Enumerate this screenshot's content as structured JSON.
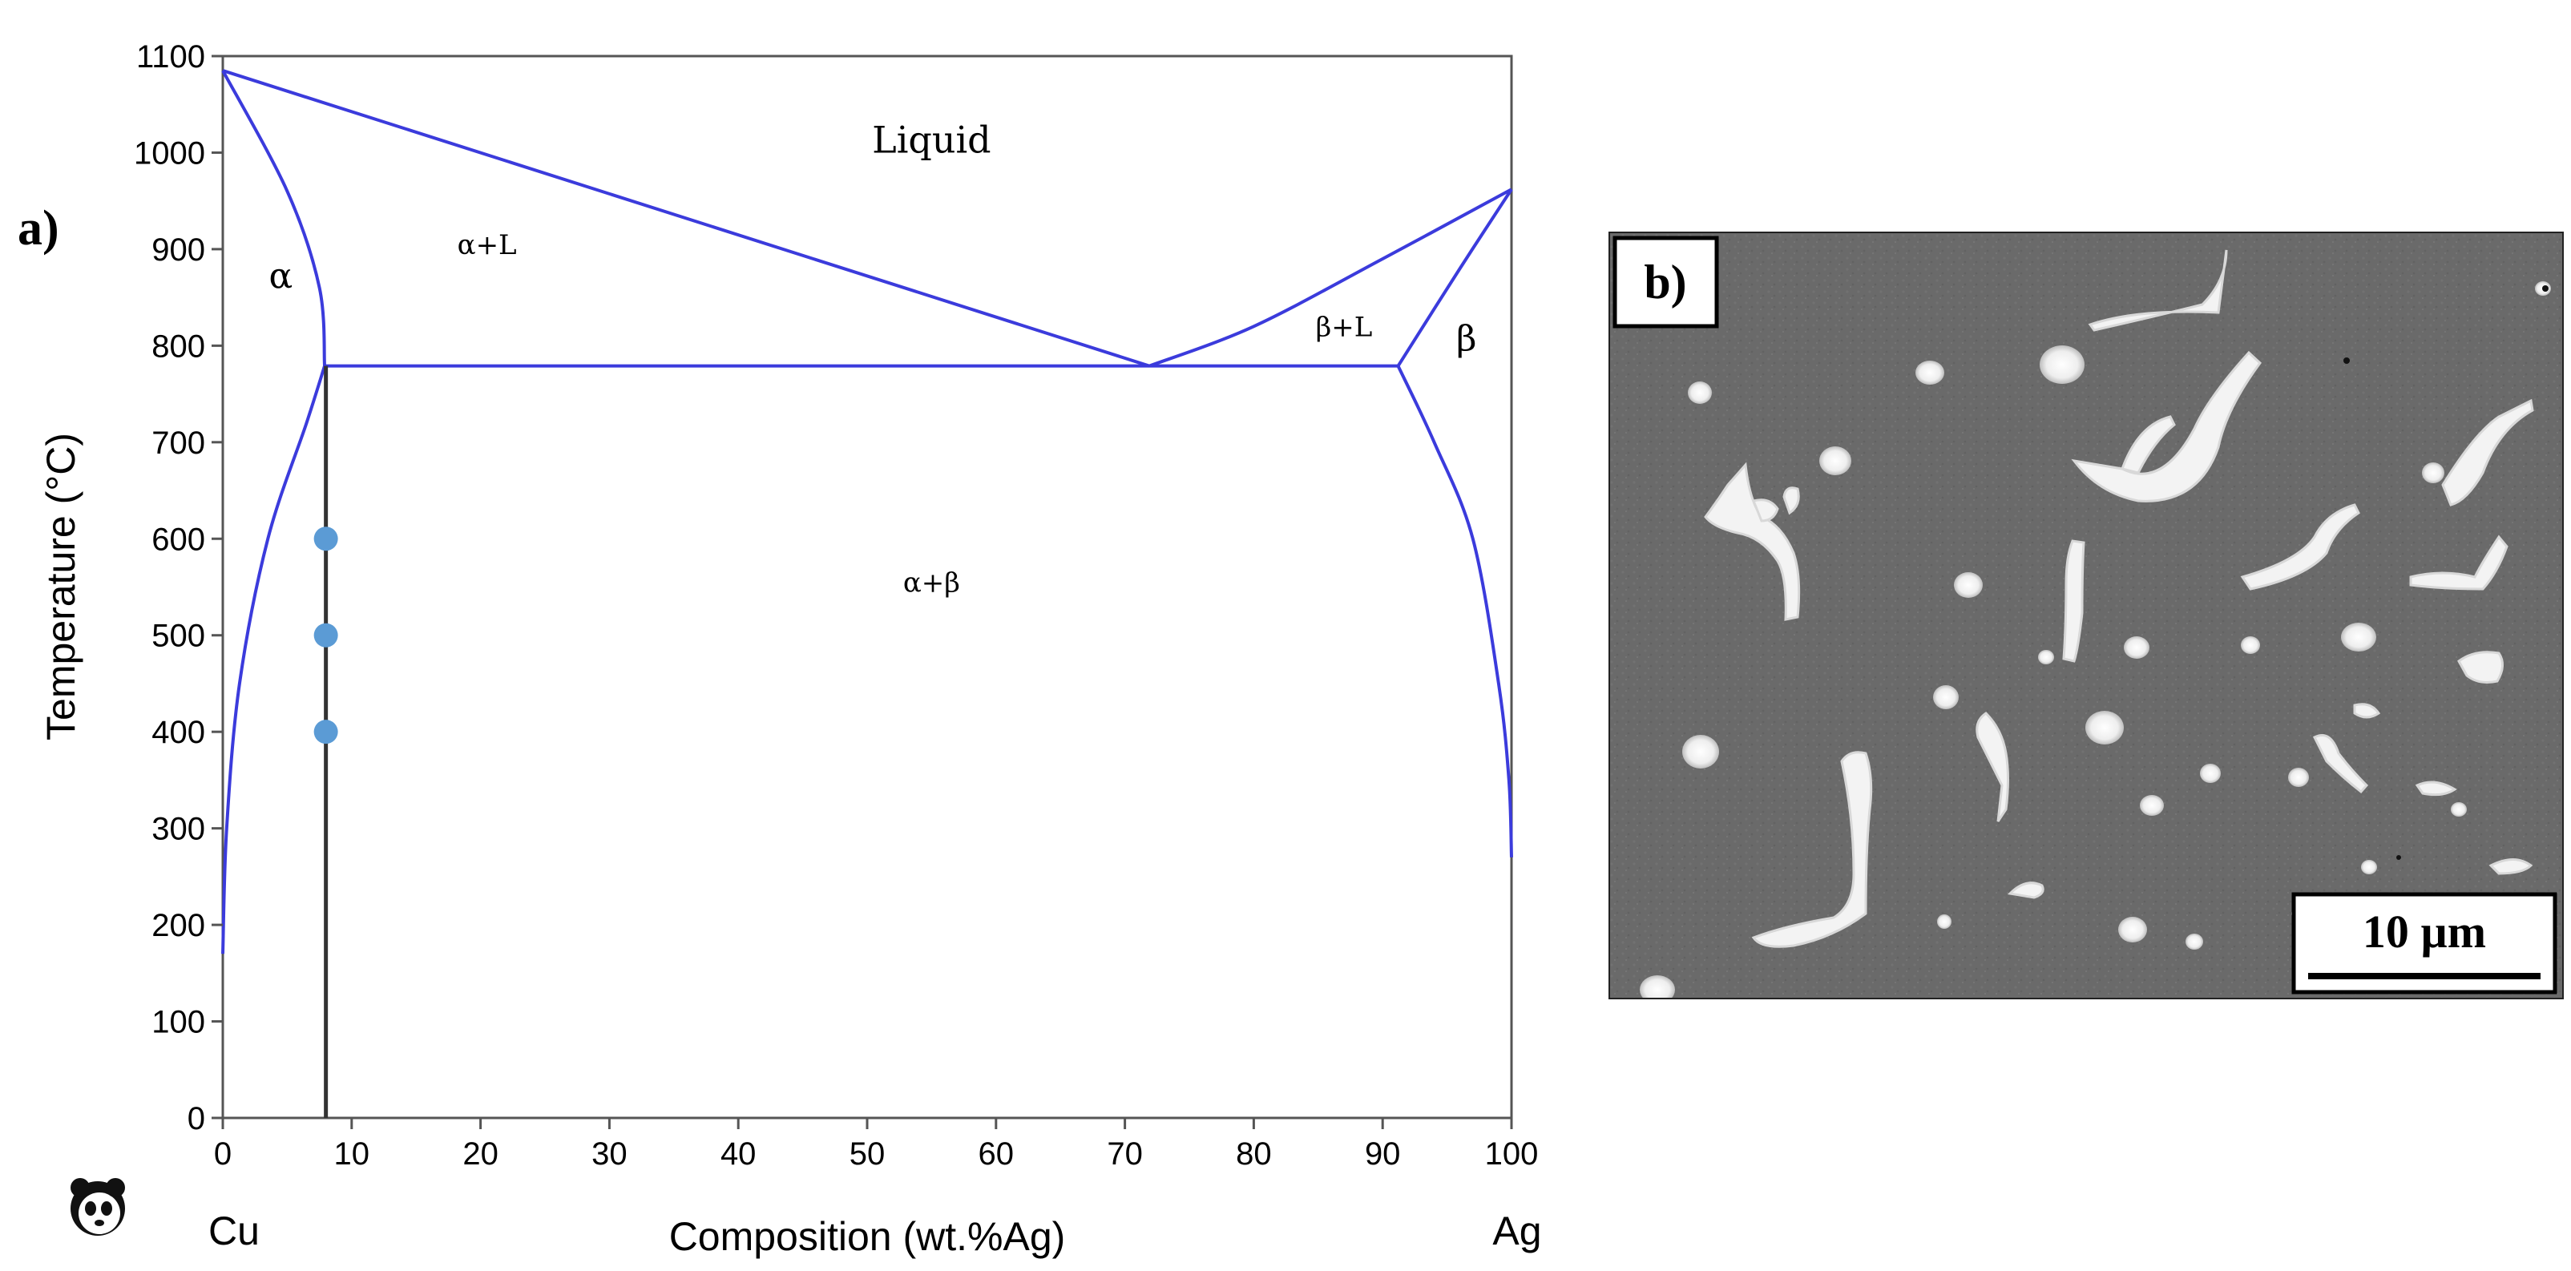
{
  "chart_data": {
    "type": "line",
    "panel_label": "a)",
    "xlabel": "Composition (wt.%Ag)",
    "ylabel": "Temperature (°C)",
    "xlim": [
      0,
      100
    ],
    "ylim": [
      0,
      1100
    ],
    "x_ticks": [
      0,
      10,
      20,
      30,
      40,
      50,
      60,
      70,
      80,
      90,
      100
    ],
    "y_ticks": [
      0,
      100,
      200,
      300,
      400,
      500,
      600,
      700,
      800,
      900,
      1000,
      1100
    ],
    "x_end_labels": {
      "left": "Cu",
      "right": "Ag"
    },
    "grid": false,
    "line_color": "#3b3bdc",
    "composition_line_color": "#333333",
    "point_color": "#5b9bd5",
    "regions": [
      {
        "label": "Liquid",
        "x": 55,
        "y": 1000
      },
      {
        "label": "α",
        "x": 4.5,
        "y": 860
      },
      {
        "label": "α+L",
        "x": 20.5,
        "y": 895
      },
      {
        "label": "α+β",
        "x": 55,
        "y": 545
      },
      {
        "label": "β+L",
        "x": 87,
        "y": 810
      },
      {
        "label": "β",
        "x": 96.5,
        "y": 795
      }
    ],
    "boundaries": [
      {
        "name": "liquidus-left",
        "points": [
          [
            0,
            1085
          ],
          [
            71.9,
            779
          ]
        ]
      },
      {
        "name": "liquidus-right",
        "points": [
          [
            71.9,
            779
          ],
          [
            80,
            820
          ],
          [
            90,
            890
          ],
          [
            100,
            962
          ]
        ]
      },
      {
        "name": "eutectic-isotherm",
        "points": [
          [
            7.9,
            779
          ],
          [
            91.2,
            779
          ]
        ]
      },
      {
        "name": "solidus-alpha",
        "points": [
          [
            0,
            1085
          ],
          [
            5,
            960
          ],
          [
            7.5,
            860
          ],
          [
            7.9,
            779
          ]
        ]
      },
      {
        "name": "solvus-alpha",
        "points": [
          [
            7.9,
            779
          ],
          [
            6.5,
            720
          ],
          [
            3.5,
            600
          ],
          [
            1.3,
            450
          ],
          [
            0.3,
            300
          ],
          [
            0,
            170
          ]
        ]
      },
      {
        "name": "solidus-beta",
        "points": [
          [
            100,
            962
          ],
          [
            96,
            880
          ],
          [
            91.2,
            779
          ]
        ]
      },
      {
        "name": "solvus-beta",
        "points": [
          [
            91.2,
            779
          ],
          [
            94,
            700
          ],
          [
            97,
            600
          ],
          [
            99,
            450
          ],
          [
            99.8,
            350
          ],
          [
            100,
            270
          ]
        ]
      }
    ],
    "composition_line": {
      "x": 8,
      "y_range": [
        0,
        779
      ]
    },
    "series": [
      {
        "x": [
          8,
          8,
          8
        ],
        "values": [
          400,
          500,
          600
        ]
      }
    ]
  },
  "micrograph": {
    "panel_label": "b)",
    "scale_bar_label": "10 µm"
  }
}
